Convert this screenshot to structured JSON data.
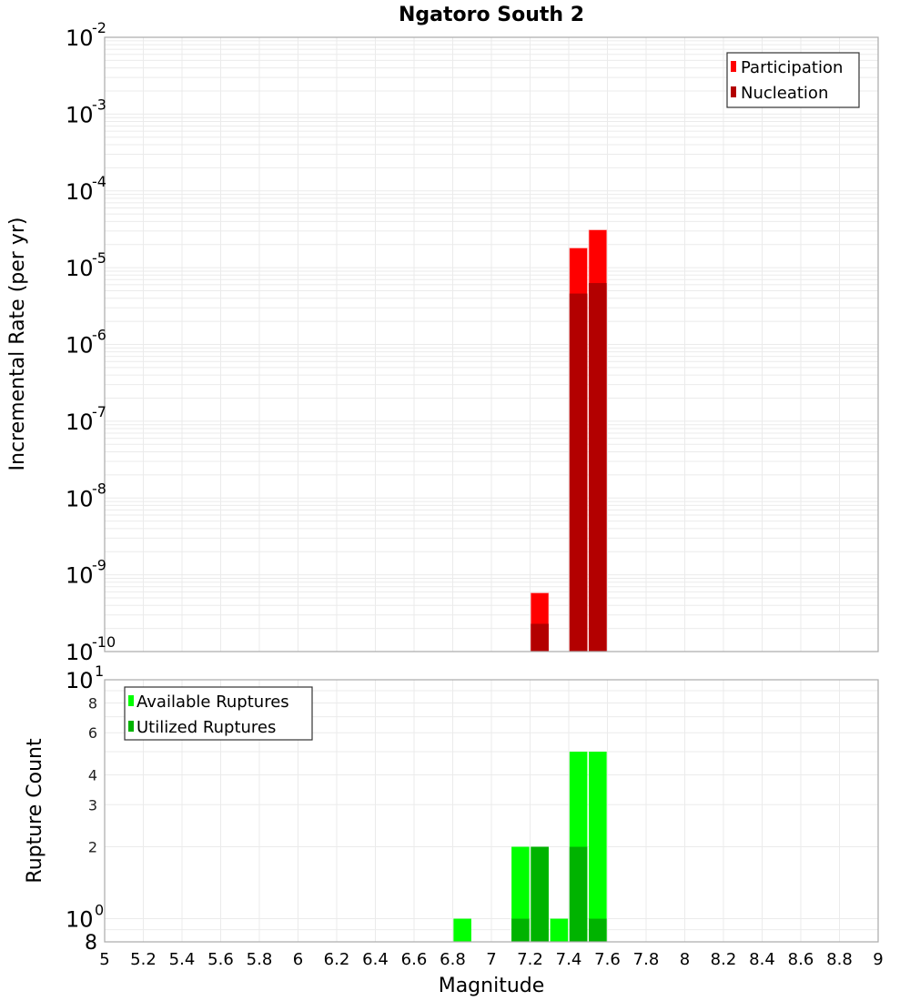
{
  "chart_data": [
    {
      "type": "bar",
      "title": "Ngatoro South 2",
      "xlabel": "Magnitude",
      "ylabel": "Incremental Rate (per yr)",
      "yscale": "log",
      "xlim": [
        5,
        9
      ],
      "ylim": [
        1e-10,
        0.01
      ],
      "grid": true,
      "legend_position": "upper right",
      "x": [
        7.25,
        7.45,
        7.55
      ],
      "bin_width": 0.1,
      "series": [
        {
          "name": "Participation",
          "color": "#ff0000",
          "values": [
            5.8e-10,
            1.8e-05,
            3.1e-05
          ]
        },
        {
          "name": "Nucleation",
          "color": "#b30000",
          "values": [
            2.3e-10,
            4.6e-06,
            6.3e-06
          ]
        }
      ],
      "ytick_labels": [
        {
          "base": "10",
          "exp": "-2"
        },
        {
          "base": "10",
          "exp": "-3"
        },
        {
          "base": "10",
          "exp": "-4"
        },
        {
          "base": "10",
          "exp": "-5"
        },
        {
          "base": "10",
          "exp": "-6"
        },
        {
          "base": "10",
          "exp": "-7"
        },
        {
          "base": "10",
          "exp": "-8"
        },
        {
          "base": "10",
          "exp": "-9"
        },
        {
          "base": "10",
          "exp": "-10"
        }
      ]
    },
    {
      "type": "bar",
      "xlabel": "Magnitude",
      "ylabel": "Rupture Count",
      "yscale": "log",
      "xlim": [
        5,
        9
      ],
      "ylim": [
        0.8,
        10
      ],
      "grid": true,
      "legend_position": "upper left",
      "x": [
        6.85,
        7.15,
        7.25,
        7.35,
        7.45,
        7.55
      ],
      "bin_width": 0.1,
      "series": [
        {
          "name": "Available Ruptures",
          "color": "#00ff00",
          "values": [
            1,
            2,
            2,
            1,
            5,
            5
          ]
        },
        {
          "name": "Utilized Ruptures",
          "color": "#00b300",
          "values": [
            0,
            1,
            2,
            0,
            2,
            1
          ]
        }
      ],
      "ytick_labels": [
        "8",
        "10^0",
        "2",
        "3",
        "4",
        "6",
        "8",
        "10^1"
      ]
    }
  ],
  "title": "Ngatoro South 2",
  "xaxis": {
    "label": "Magnitude",
    "ticks": [
      "5",
      "5.2",
      "5.4",
      "5.6",
      "5.8",
      "6",
      "6.2",
      "6.4",
      "6.6",
      "6.8",
      "7",
      "7.2",
      "7.4",
      "7.6",
      "7.8",
      "8",
      "8.2",
      "8.4",
      "8.6",
      "8.8",
      "9"
    ]
  },
  "top_plot": {
    "ylabel": "Incremental Rate (per yr)",
    "legend": [
      {
        "label": "Participation",
        "color": "#ff0000"
      },
      {
        "label": "Nucleation",
        "color": "#b30000"
      }
    ]
  },
  "bottom_plot": {
    "ylabel": "Rupture Count",
    "legend": [
      {
        "label": "Available Ruptures",
        "color": "#00ff00"
      },
      {
        "label": "Utilized Ruptures",
        "color": "#00b300"
      }
    ],
    "ytick_minor_labels": [
      {
        "label": "8",
        "value": 8
      },
      {
        "label": "6",
        "value": 6
      },
      {
        "label": "4",
        "value": 4
      },
      {
        "label": "3",
        "value": 3
      },
      {
        "label": "2",
        "value": 2
      }
    ],
    "ytick_major": [
      {
        "base": "10",
        "exp": "1",
        "value": 10
      },
      {
        "base": "10",
        "exp": "0",
        "value": 1
      }
    ],
    "ytick_bottom_label": "8"
  }
}
